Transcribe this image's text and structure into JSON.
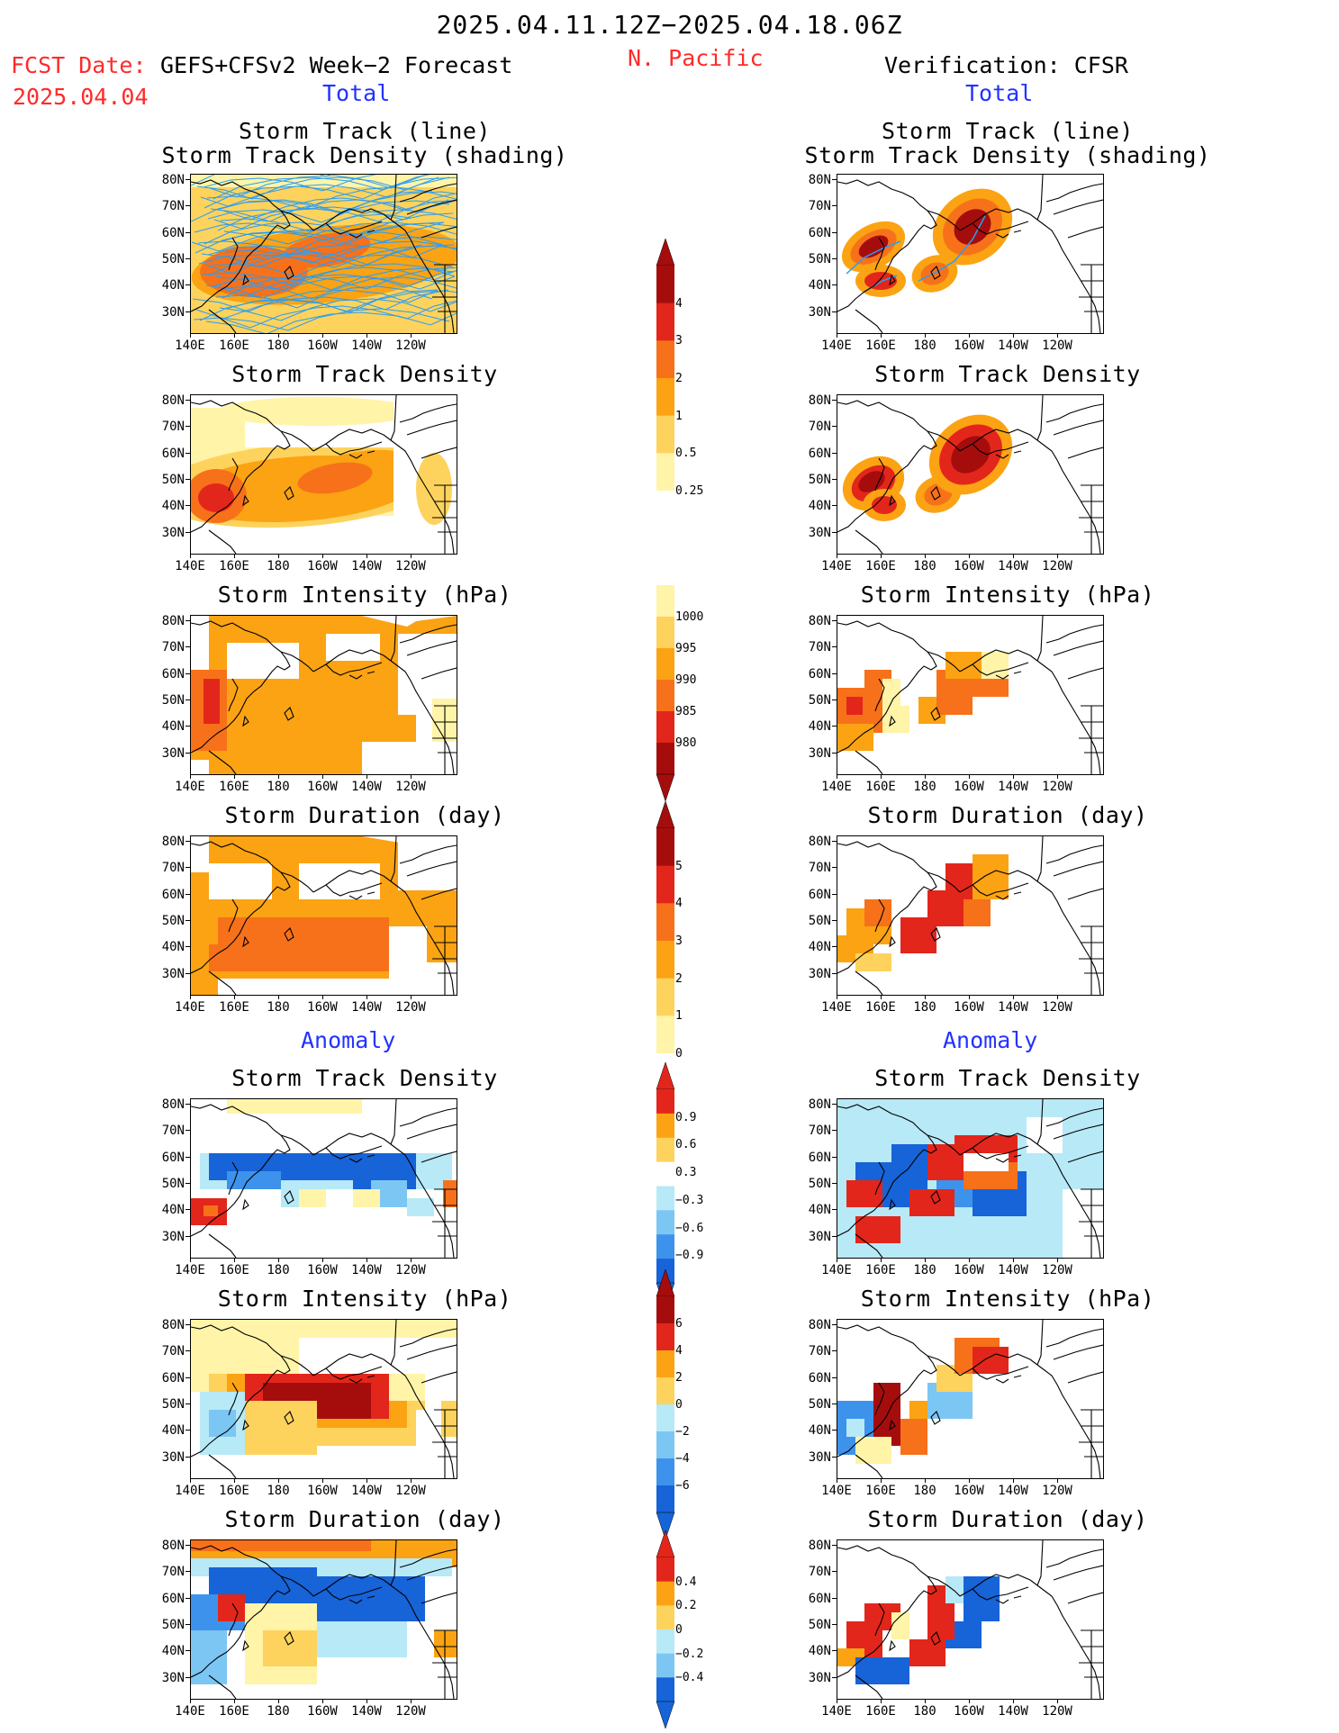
{
  "header": {
    "period": "2025.04.11.12Z−2025.04.18.06Z",
    "fcst_label": "FCST Date:",
    "fcst_model": "GEFS+CFSv2 Week−2 Forecast",
    "fcst_date": "2025.04.04",
    "region": "N. Pacific",
    "verification": "Verification: CFSR",
    "total_left": "Total",
    "total_right": "Total",
    "anomaly_left": "Anomaly",
    "anomaly_right": "Anomaly"
  },
  "panel_titles": {
    "track_line": "Storm Track (line)",
    "track_shading": "Storm Track Density (shading)",
    "density": "Storm Track Density",
    "intensity": "Storm Intensity (hPa)",
    "duration": "Storm Duration (day)"
  },
  "axes": {
    "lat_ticks": [
      "80N",
      "70N",
      "60N",
      "50N",
      "40N",
      "30N"
    ],
    "lon_ticks": [
      "140E",
      "160E",
      "180",
      "160W",
      "140W",
      "120W"
    ]
  },
  "colors": {
    "c1": "#fff4a8",
    "c2": "#fdd35d",
    "c3": "#fba313",
    "c4": "#f7711a",
    "c5": "#e3261b",
    "c6": "#a50d0d",
    "n1": "#b7e9f7",
    "n2": "#7cc6f4",
    "n3": "#3d93ec",
    "n4": "#1763d8",
    "track": "#2a9df4",
    "land": "#000000"
  },
  "colorbars": [
    {
      "name": "density",
      "top_arrow": true,
      "bottom_arrow": false,
      "labels": [
        "4",
        "3",
        "2",
        "1",
        "0.5",
        "0.25"
      ]
    },
    {
      "name": "intensity",
      "top_arrow": false,
      "bottom_arrow": true,
      "labels": [
        "1000",
        "995",
        "990",
        "985",
        "980"
      ]
    },
    {
      "name": "duration",
      "top_arrow": true,
      "bottom_arrow": false,
      "labels": [
        "5",
        "4",
        "3",
        "2",
        "1",
        "0"
      ]
    },
    {
      "name": "density-anomaly",
      "top_arrow": true,
      "bottom_arrow": true,
      "labels": [
        "0.9",
        "0.6",
        "0.3",
        "−0.3",
        "−0.6",
        "−0.9"
      ]
    },
    {
      "name": "intensity-anomaly",
      "top_arrow": true,
      "bottom_arrow": true,
      "labels": [
        "6",
        "4",
        "2",
        "0",
        "−2",
        "−4",
        "−6"
      ]
    },
    {
      "name": "duration-anomaly",
      "top_arrow": true,
      "bottom_arrow": true,
      "labels": [
        "0.4",
        "0.2",
        "0",
        "−0.2",
        "−0.4"
      ]
    }
  ]
}
